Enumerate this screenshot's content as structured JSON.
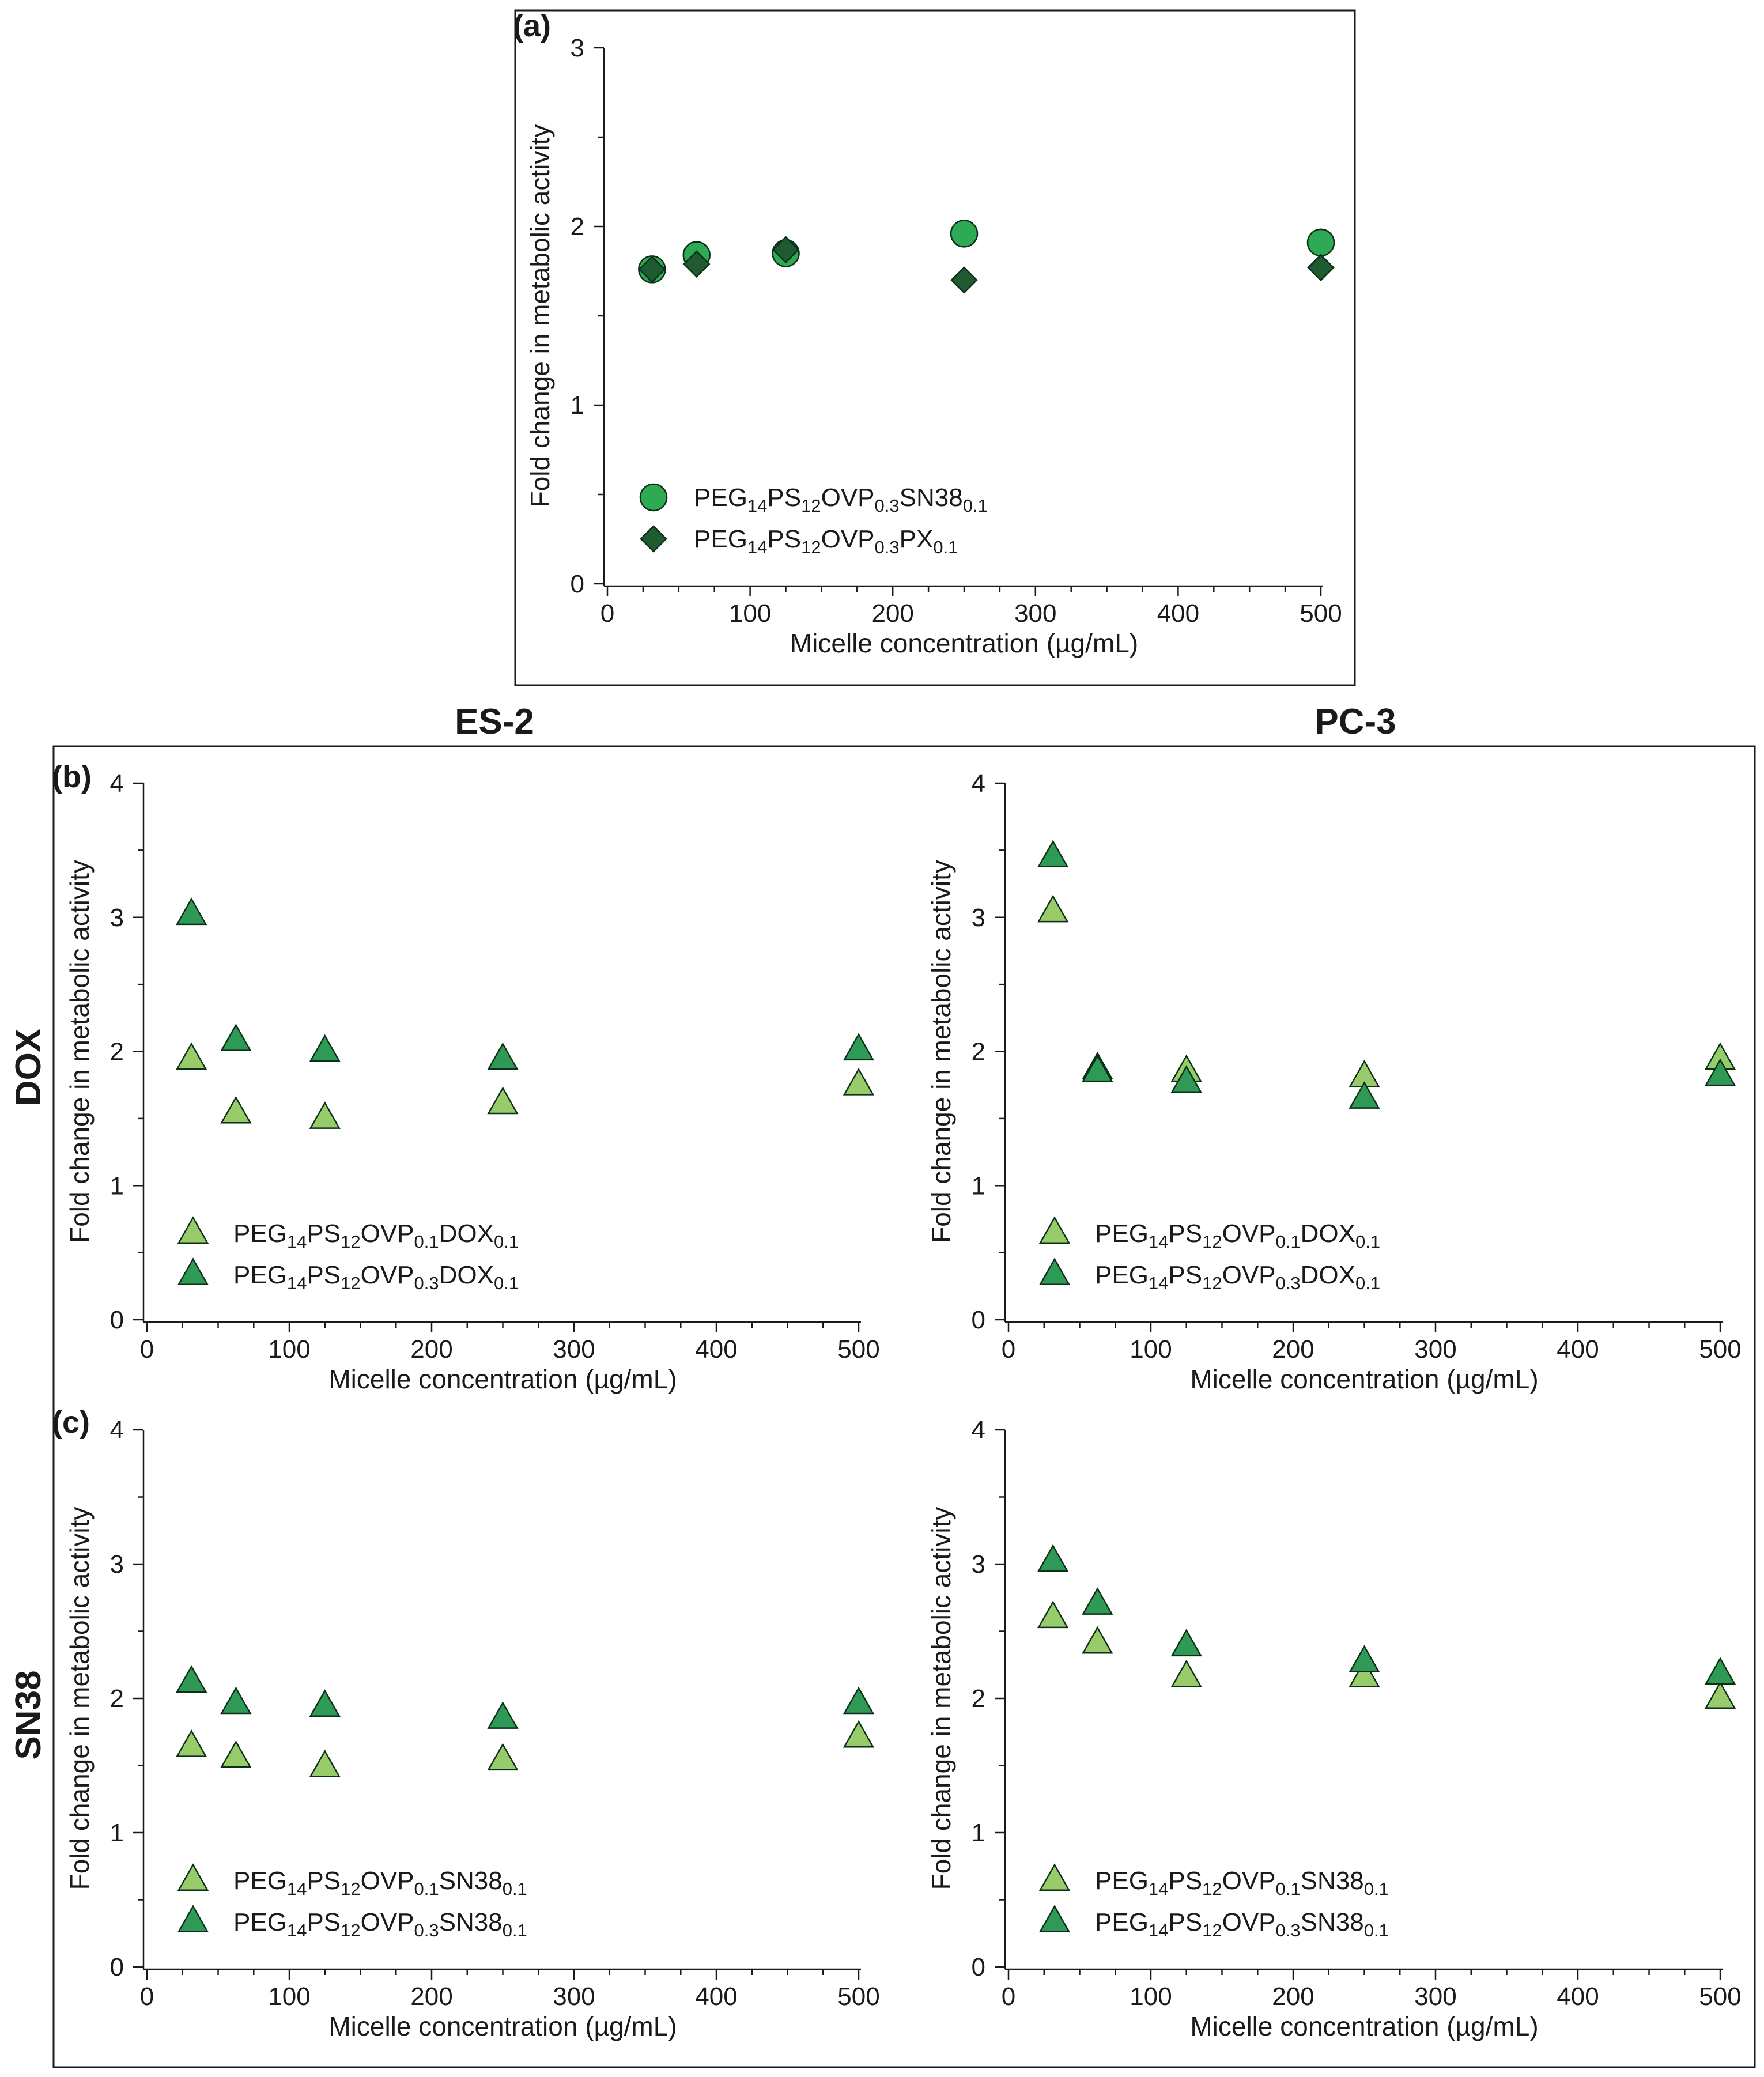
{
  "figure": {
    "column_headers": [
      "ES-2",
      "PC-3"
    ],
    "row_headers": [
      "DOX",
      "SN38"
    ]
  },
  "colors": {
    "sn38_circle": "#2eaa55",
    "px_diamond": "#1f5a30",
    "ovp01_light": "#98cc6b",
    "ovp03_dark": "#2f9a55",
    "stroke": "#0b2f17"
  },
  "chart_data": [
    {
      "id": "a",
      "panel_label": "(a)",
      "type": "scatter",
      "xlabel": "Micelle concentration (µg/mL)",
      "ylabel": "Fold change in metabolic activity",
      "xlim": [
        0,
        500
      ],
      "ylim": [
        0,
        3
      ],
      "xticks": [
        "0",
        "100",
        "200",
        "300",
        "400",
        "500"
      ],
      "yticks": [
        "0",
        "1",
        "2",
        "3"
      ],
      "legend_position": "bottom-left",
      "series": [
        {
          "name": "PEG14PS12OVP0.3SN380.1",
          "label_parts": [
            [
              "PEG",
              ""
            ],
            [
              "14",
              "sub"
            ],
            [
              "PS",
              ""
            ],
            [
              "12",
              "sub"
            ],
            [
              "OVP",
              ""
            ],
            [
              "0.3",
              "sub"
            ],
            [
              "SN38",
              ""
            ],
            [
              "0.1",
              "sub"
            ]
          ],
          "marker": "circle",
          "color": "#2eaa55",
          "x": [
            31.25,
            62.5,
            125,
            250,
            500
          ],
          "y": [
            1.76,
            1.84,
            1.85,
            1.96,
            1.91
          ]
        },
        {
          "name": "PEG14PS12OVP0.3PX0.1",
          "label_parts": [
            [
              "PEG",
              ""
            ],
            [
              "14",
              "sub"
            ],
            [
              "PS",
              ""
            ],
            [
              "12",
              "sub"
            ],
            [
              "OVP",
              ""
            ],
            [
              "0.3",
              "sub"
            ],
            [
              "PX",
              ""
            ],
            [
              "0.1",
              "sub"
            ]
          ],
          "marker": "diamond",
          "color": "#1f5a30",
          "x": [
            31.25,
            62.5,
            125,
            250,
            500
          ],
          "y": [
            1.76,
            1.79,
            1.87,
            1.7,
            1.77
          ]
        }
      ]
    },
    {
      "id": "b-es2",
      "panel_label": "(b)",
      "type": "scatter",
      "xlabel": "Micelle concentration (µg/mL)",
      "ylabel": "Fold change in metabolic activity",
      "xlim": [
        0,
        500
      ],
      "ylim": [
        0,
        4
      ],
      "xticks": [
        "0",
        "100",
        "200",
        "300",
        "400",
        "500"
      ],
      "yticks": [
        "0",
        "1",
        "2",
        "3",
        "4"
      ],
      "legend_position": "bottom-left",
      "series": [
        {
          "name": "PEG14PS12OVP0.1DOX0.1",
          "label_parts": [
            [
              "PEG",
              ""
            ],
            [
              "14",
              "sub"
            ],
            [
              "PS",
              ""
            ],
            [
              "12",
              "sub"
            ],
            [
              "OVP",
              ""
            ],
            [
              "0.1",
              "sub"
            ],
            [
              "DOX",
              ""
            ],
            [
              "0.1",
              "sub"
            ]
          ],
          "marker": "triangle",
          "color": "#98cc6b",
          "x": [
            31.25,
            62.5,
            125,
            250,
            500
          ],
          "y": [
            1.94,
            1.54,
            1.5,
            1.61,
            1.75
          ]
        },
        {
          "name": "PEG14PS12OVP0.3DOX0.1",
          "label_parts": [
            [
              "PEG",
              ""
            ],
            [
              "14",
              "sub"
            ],
            [
              "PS",
              ""
            ],
            [
              "12",
              "sub"
            ],
            [
              "OVP",
              ""
            ],
            [
              "0.3",
              "sub"
            ],
            [
              "DOX",
              ""
            ],
            [
              "0.1",
              "sub"
            ]
          ],
          "marker": "triangle",
          "color": "#2f9a55",
          "x": [
            31.25,
            62.5,
            125,
            250,
            500
          ],
          "y": [
            3.02,
            2.08,
            2.0,
            1.94,
            2.01
          ]
        }
      ]
    },
    {
      "id": "b-pc3",
      "panel_label": "",
      "type": "scatter",
      "xlabel": "Micelle concentration (µg/mL)",
      "ylabel": "Fold change in metabolic activity",
      "xlim": [
        0,
        500
      ],
      "ylim": [
        0,
        4
      ],
      "xticks": [
        "0",
        "100",
        "200",
        "300",
        "400",
        "500"
      ],
      "yticks": [
        "0",
        "1",
        "2",
        "3",
        "4"
      ],
      "legend_position": "bottom-left",
      "series": [
        {
          "name": "PEG14PS12OVP0.1DOX0.1",
          "label_parts": [
            [
              "PEG",
              ""
            ],
            [
              "14",
              "sub"
            ],
            [
              "PS",
              ""
            ],
            [
              "12",
              "sub"
            ],
            [
              "OVP",
              ""
            ],
            [
              "0.1",
              "sub"
            ],
            [
              "DOX",
              ""
            ],
            [
              "0.1",
              "sub"
            ]
          ],
          "marker": "triangle",
          "color": "#98cc6b",
          "x": [
            31.25,
            62.5,
            125,
            250,
            500
          ],
          "y": [
            3.04,
            1.87,
            1.85,
            1.81,
            1.94
          ]
        },
        {
          "name": "PEG14PS12OVP0.3DOX0.1",
          "label_parts": [
            [
              "PEG",
              ""
            ],
            [
              "14",
              "sub"
            ],
            [
              "PS",
              ""
            ],
            [
              "12",
              "sub"
            ],
            [
              "OVP",
              ""
            ],
            [
              "0.3",
              "sub"
            ],
            [
              "DOX",
              ""
            ],
            [
              "0.1",
              "sub"
            ]
          ],
          "marker": "triangle",
          "color": "#2f9a55",
          "x": [
            31.25,
            62.5,
            125,
            250,
            500
          ],
          "y": [
            3.45,
            1.85,
            1.77,
            1.65,
            1.82
          ]
        }
      ]
    },
    {
      "id": "c-es2",
      "panel_label": "(c)",
      "type": "scatter",
      "xlabel": "Micelle concentration (µg/mL)",
      "ylabel": "Fold change in metabolic activity",
      "xlim": [
        0,
        500
      ],
      "ylim": [
        0,
        4
      ],
      "xticks": [
        "0",
        "100",
        "200",
        "300",
        "400",
        "500"
      ],
      "yticks": [
        "0",
        "1",
        "2",
        "3",
        "4"
      ],
      "legend_position": "bottom-left",
      "series": [
        {
          "name": "PEG14PS12OVP0.1SN380.1",
          "label_parts": [
            [
              "PEG",
              ""
            ],
            [
              "14",
              "sub"
            ],
            [
              "PS",
              ""
            ],
            [
              "12",
              "sub"
            ],
            [
              "OVP",
              ""
            ],
            [
              "0.1",
              "sub"
            ],
            [
              "SN38",
              ""
            ],
            [
              "0.1",
              "sub"
            ]
          ],
          "marker": "triangle",
          "color": "#98cc6b",
          "x": [
            31.25,
            62.5,
            125,
            250,
            500
          ],
          "y": [
            1.64,
            1.56,
            1.49,
            1.54,
            1.71
          ]
        },
        {
          "name": "PEG14PS12OVP0.3SN380.1",
          "label_parts": [
            [
              "PEG",
              ""
            ],
            [
              "14",
              "sub"
            ],
            [
              "PS",
              ""
            ],
            [
              "12",
              "sub"
            ],
            [
              "OVP",
              ""
            ],
            [
              "0.3",
              "sub"
            ],
            [
              "SN38",
              ""
            ],
            [
              "0.1",
              "sub"
            ]
          ],
          "marker": "triangle",
          "color": "#2f9a55",
          "x": [
            31.25,
            62.5,
            125,
            250,
            500
          ],
          "y": [
            2.12,
            1.96,
            1.94,
            1.85,
            1.96
          ]
        }
      ]
    },
    {
      "id": "c-pc3",
      "panel_label": "",
      "type": "scatter",
      "xlabel": "Micelle concentration (µg/mL)",
      "ylabel": "Fold change in metabolic activity",
      "xlim": [
        0,
        500
      ],
      "ylim": [
        0,
        4
      ],
      "xticks": [
        "0",
        "100",
        "200",
        "300",
        "400",
        "500"
      ],
      "yticks": [
        "0",
        "1",
        "2",
        "3",
        "4"
      ],
      "legend_position": "bottom-left",
      "series": [
        {
          "name": "PEG14PS12OVP0.1SN380.1",
          "label_parts": [
            [
              "PEG",
              ""
            ],
            [
              "14",
              "sub"
            ],
            [
              "PS",
              ""
            ],
            [
              "12",
              "sub"
            ],
            [
              "OVP",
              ""
            ],
            [
              "0.1",
              "sub"
            ],
            [
              "SN38",
              ""
            ],
            [
              "0.1",
              "sub"
            ]
          ],
          "marker": "triangle",
          "color": "#98cc6b",
          "x": [
            31.25,
            62.5,
            125,
            250,
            500
          ],
          "y": [
            2.6,
            2.41,
            2.16,
            2.16,
            2.0
          ]
        },
        {
          "name": "PEG14PS12OVP0.3SN380.1",
          "label_parts": [
            [
              "PEG",
              ""
            ],
            [
              "14",
              "sub"
            ],
            [
              "PS",
              ""
            ],
            [
              "12",
              "sub"
            ],
            [
              "OVP",
              ""
            ],
            [
              "0.3",
              "sub"
            ],
            [
              "SN38",
              ""
            ],
            [
              "0.1",
              "sub"
            ]
          ],
          "marker": "triangle",
          "color": "#2f9a55",
          "x": [
            31.25,
            62.5,
            125,
            250,
            500
          ],
          "y": [
            3.02,
            2.7,
            2.39,
            2.27,
            2.18
          ]
        }
      ]
    }
  ]
}
